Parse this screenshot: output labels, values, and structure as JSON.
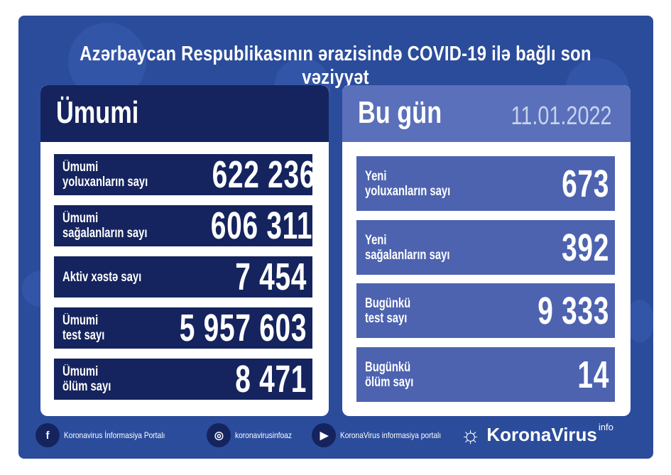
{
  "title": "Azərbaycan Respublikasının ərazisində COVID-19 ilə bağlı son vəziyyət",
  "total": {
    "heading": "Ümumi",
    "rows": [
      {
        "label1": "Ümumi",
        "label2": "yoluxanların sayı",
        "value": "622 236"
      },
      {
        "label1": "Ümumi",
        "label2": "sağalanların sayı",
        "value": "606 311"
      },
      {
        "label1": "Aktiv xəstə sayı",
        "label2": "",
        "value": "7 454"
      },
      {
        "label1": "Ümumi",
        "label2": "test sayı",
        "value": "5 957 603"
      },
      {
        "label1": "Ümumi",
        "label2": "ölüm sayı",
        "value": "8 471"
      }
    ]
  },
  "today": {
    "heading": "Bu gün",
    "date": "11.01.2022",
    "rows": [
      {
        "label1": "Yeni",
        "label2": "yoluxanların sayı",
        "value": "673"
      },
      {
        "label1": "Yeni",
        "label2": "sağalanların sayı",
        "value": "392"
      },
      {
        "label1": "Bugünkü",
        "label2": "test sayı",
        "value": "9 333"
      },
      {
        "label1": "Bugünkü",
        "label2": "ölüm sayı",
        "value": "14"
      }
    ]
  },
  "footer": {
    "facebook": "Koronavirus İnformasiya Portalı",
    "instagram": "koronavirusinfoaz",
    "youtube": "KoronaVirus informasiya portalı"
  },
  "logo": {
    "name": "KoronaVirus",
    "sup": "info"
  },
  "colors": {
    "background": "#2b4c9b",
    "navy": "#15245e",
    "today": "#4d63b0"
  }
}
